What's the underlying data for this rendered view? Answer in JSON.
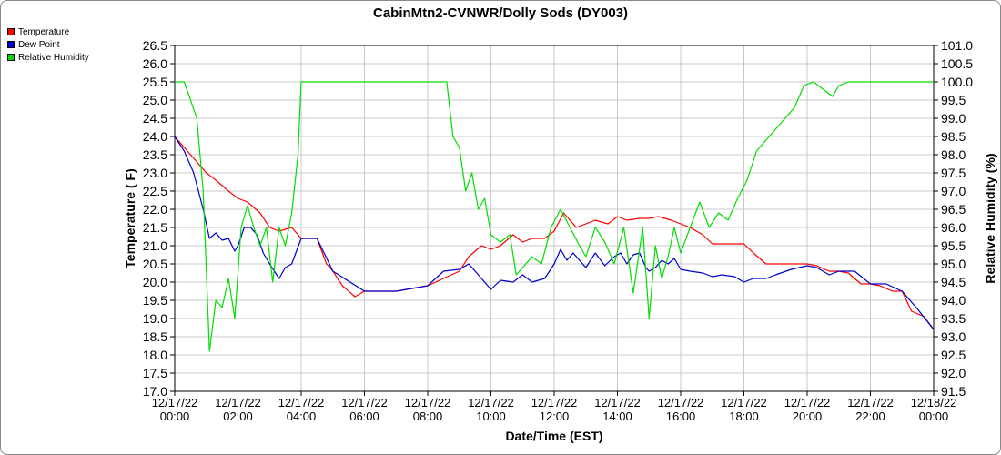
{
  "chart_data": {
    "type": "line",
    "title": "CabinMtn2-CVNWR/Dolly Sods (DY003)",
    "xlabel": "Date/Time (EST)",
    "ylabel_left": "Temperature ( F)",
    "ylabel_right": "Relative Humidity (%)",
    "y_left_range": [
      17.0,
      26.5
    ],
    "y_right_range": [
      91.5,
      101.0
    ],
    "y_left_ticks": [
      "17.0",
      "17.5",
      "18.0",
      "18.5",
      "19.0",
      "19.5",
      "20.0",
      "20.5",
      "21.0",
      "21.5",
      "22.0",
      "22.5",
      "23.0",
      "23.5",
      "24.0",
      "24.5",
      "25.0",
      "25.5",
      "26.0",
      "26.5"
    ],
    "y_right_ticks": [
      "91.5",
      "92.0",
      "92.5",
      "93.0",
      "93.5",
      "94.0",
      "94.5",
      "95.0",
      "95.5",
      "96.0",
      "96.5",
      "97.0",
      "97.5",
      "98.0",
      "98.5",
      "99.0",
      "99.5",
      "100.0",
      "100.5",
      "101.0"
    ],
    "x_range_hours": [
      0,
      24
    ],
    "x_ticks": [
      {
        "date": "12/17/22",
        "time": "00:00"
      },
      {
        "date": "12/17/22",
        "time": "02:00"
      },
      {
        "date": "12/17/22",
        "time": "04:00"
      },
      {
        "date": "12/17/22",
        "time": "06:00"
      },
      {
        "date": "12/17/22",
        "time": "08:00"
      },
      {
        "date": "12/17/22",
        "time": "10:00"
      },
      {
        "date": "12/17/22",
        "time": "12:00"
      },
      {
        "date": "12/17/22",
        "time": "14:00"
      },
      {
        "date": "12/17/22",
        "time": "16:00"
      },
      {
        "date": "12/17/22",
        "time": "18:00"
      },
      {
        "date": "12/17/22",
        "time": "20:00"
      },
      {
        "date": "12/17/22",
        "time": "22:00"
      },
      {
        "date": "12/18/22",
        "time": "00:00"
      }
    ],
    "grid": true,
    "legend_position": "top-left",
    "series": [
      {
        "name": "Temperature",
        "color": "#ff0000",
        "axis": "left",
        "x": [
          0,
          0.5,
          1,
          1.3,
          1.7,
          2,
          2.3,
          2.7,
          3,
          3.3,
          3.7,
          4,
          4.5,
          4.8,
          5,
          5.3,
          5.7,
          6,
          7,
          8,
          8.5,
          9,
          9.3,
          9.7,
          10,
          10.3,
          10.7,
          11,
          11.3,
          11.7,
          12,
          12.3,
          12.7,
          13,
          13.3,
          13.7,
          14,
          14.3,
          14.7,
          15,
          15.3,
          15.7,
          16,
          16.3,
          16.7,
          17,
          17.5,
          18,
          18.3,
          18.7,
          19,
          19.5,
          20,
          20.3,
          20.7,
          21,
          21.3,
          21.7,
          22,
          22.3,
          22.7,
          23,
          23.3,
          23.7,
          24
        ],
        "y": [
          24.0,
          23.5,
          23.0,
          22.8,
          22.5,
          22.3,
          22.2,
          21.9,
          21.5,
          21.4,
          21.5,
          21.2,
          21.2,
          20.5,
          20.3,
          19.9,
          19.6,
          19.75,
          19.75,
          19.9,
          20.1,
          20.3,
          20.7,
          21.0,
          20.9,
          21.0,
          21.3,
          21.1,
          21.2,
          21.2,
          21.4,
          21.9,
          21.5,
          21.6,
          21.7,
          21.6,
          21.8,
          21.7,
          21.75,
          21.75,
          21.8,
          21.7,
          21.6,
          21.5,
          21.3,
          21.05,
          21.05,
          21.05,
          20.8,
          20.5,
          20.5,
          20.5,
          20.5,
          20.45,
          20.3,
          20.3,
          20.25,
          19.95,
          19.95,
          19.9,
          19.75,
          19.75,
          19.2,
          19.05,
          18.7
        ]
      },
      {
        "name": "Dew Point",
        "color": "#0000cc",
        "axis": "left",
        "x": [
          0,
          0.3,
          0.6,
          0.9,
          1.1,
          1.3,
          1.5,
          1.7,
          1.9,
          2,
          2.2,
          2.4,
          2.6,
          2.8,
          3,
          3.3,
          3.5,
          3.7,
          4,
          4.5,
          5,
          6,
          7,
          8,
          8.5,
          9,
          9.3,
          9.5,
          9.7,
          10,
          10.3,
          10.7,
          11,
          11.3,
          11.7,
          12,
          12.2,
          12.4,
          12.6,
          12.8,
          13,
          13.3,
          13.6,
          13.9,
          14.1,
          14.3,
          14.5,
          14.7,
          14.9,
          15,
          15.2,
          15.4,
          15.6,
          15.8,
          16,
          16.3,
          16.7,
          17,
          17.3,
          17.7,
          18,
          18.3,
          18.7,
          19,
          19.5,
          20,
          20.3,
          20.7,
          21,
          21.5,
          22,
          22.5,
          23,
          23.5,
          24
        ],
        "y": [
          24.0,
          23.6,
          23.0,
          22.0,
          21.2,
          21.35,
          21.15,
          21.2,
          20.85,
          21.0,
          21.5,
          21.5,
          21.3,
          20.8,
          20.5,
          20.1,
          20.4,
          20.5,
          21.2,
          21.2,
          20.3,
          19.75,
          19.75,
          19.9,
          20.3,
          20.35,
          20.5,
          20.3,
          20.1,
          19.8,
          20.05,
          20.0,
          20.2,
          20.0,
          20.1,
          20.5,
          20.9,
          20.6,
          20.8,
          20.6,
          20.4,
          20.8,
          20.45,
          20.7,
          20.8,
          20.5,
          20.75,
          20.8,
          20.4,
          20.3,
          20.4,
          20.6,
          20.5,
          20.65,
          20.35,
          20.3,
          20.25,
          20.15,
          20.2,
          20.15,
          20.0,
          20.1,
          20.1,
          20.2,
          20.35,
          20.45,
          20.4,
          20.2,
          20.3,
          20.3,
          19.95,
          19.95,
          19.75,
          19.25,
          18.7
        ]
      },
      {
        "name": "Relative Humidity",
        "color": "#00dd00",
        "axis": "right",
        "x": [
          0,
          0.3,
          0.5,
          0.7,
          0.9,
          1.1,
          1.3,
          1.5,
          1.7,
          1.9,
          2.1,
          2.3,
          2.5,
          2.7,
          2.9,
          3.1,
          3.3,
          3.5,
          3.7,
          3.9,
          4.0,
          4.2,
          5,
          6,
          7,
          8,
          8.6,
          8.8,
          9.0,
          9.2,
          9.4,
          9.6,
          9.8,
          10,
          10.3,
          10.6,
          10.8,
          11,
          11.3,
          11.6,
          11.9,
          12.2,
          12.5,
          12.8,
          13.0,
          13.3,
          13.6,
          13.9,
          14.2,
          14.5,
          14.8,
          15.0,
          15.2,
          15.4,
          15.6,
          15.8,
          16.0,
          16.3,
          16.6,
          16.9,
          17.2,
          17.5,
          17.8,
          18.1,
          18.4,
          18.7,
          19.0,
          19.3,
          19.6,
          19.9,
          20.2,
          20.5,
          20.8,
          21.0,
          21.3,
          21.6,
          22,
          23,
          24
        ],
        "y": [
          100.0,
          100.0,
          99.5,
          99.0,
          97.0,
          92.6,
          94.0,
          93.8,
          94.6,
          93.5,
          96.0,
          96.6,
          96.0,
          95.5,
          96.0,
          94.5,
          96.0,
          95.5,
          96.4,
          98.0,
          100.0,
          100.0,
          100.0,
          100.0,
          100.0,
          100.0,
          100.0,
          98.5,
          98.2,
          97.0,
          97.5,
          96.5,
          96.8,
          95.8,
          95.6,
          95.8,
          94.7,
          94.9,
          95.2,
          95.0,
          96.0,
          96.5,
          96.0,
          95.5,
          95.2,
          96.0,
          95.6,
          95.0,
          96.0,
          94.2,
          96.0,
          93.5,
          95.5,
          94.6,
          95.2,
          96.0,
          95.3,
          96.0,
          96.7,
          96.0,
          96.4,
          96.2,
          96.8,
          97.3,
          98.1,
          98.4,
          98.7,
          99.0,
          99.3,
          99.9,
          100.0,
          99.8,
          99.6,
          99.9,
          100.0,
          100.0,
          100.0,
          100.0,
          100.0
        ]
      }
    ]
  }
}
